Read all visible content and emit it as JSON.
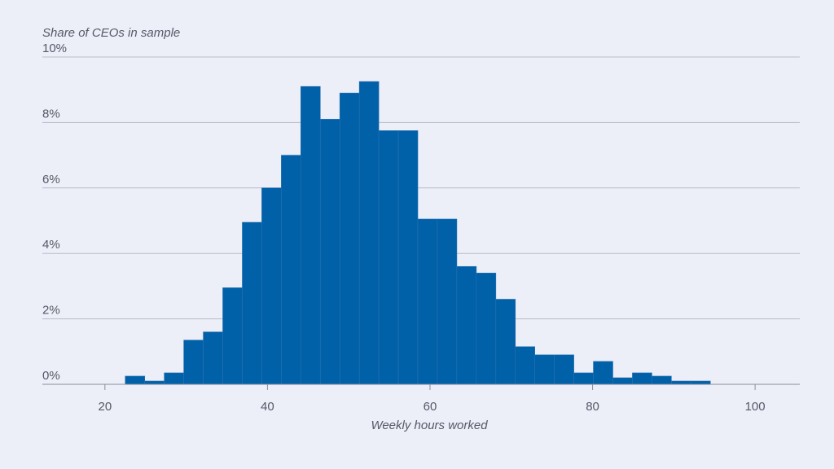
{
  "chart_data": {
    "type": "histogram",
    "ylabel": "Share of CEOs in sample",
    "xlabel": "Weekly hours worked",
    "color": "#0060a8",
    "bins": [
      22.5,
      24.9,
      27.3,
      29.7,
      32.1,
      34.5,
      36.9,
      39.3,
      41.7,
      44.1,
      46.5,
      48.9,
      51.3,
      53.7,
      56.1,
      58.5,
      60.9,
      63.3,
      65.7,
      68.1,
      70.5,
      72.9,
      75.3,
      77.7,
      80.1,
      82.5,
      84.9,
      87.3,
      89.7,
      92.1,
      94.5
    ],
    "values": [
      0.25,
      0.1,
      0.35,
      1.35,
      1.6,
      2.95,
      4.95,
      6.0,
      7.0,
      9.1,
      8.1,
      8.9,
      9.25,
      7.75,
      7.75,
      5.05,
      5.05,
      3.6,
      3.4,
      2.6,
      1.15,
      0.9,
      0.9,
      0.35,
      0.7,
      0.2,
      0.35,
      0.25,
      0.1,
      0.1
    ],
    "xlim": [
      12.3,
      105.5
    ],
    "xticks": [
      20,
      40,
      60,
      80,
      100
    ],
    "ylim": [
      0,
      10
    ],
    "yticks": [
      {
        "value": 0,
        "label": "0%"
      },
      {
        "value": 2,
        "label": "2%"
      },
      {
        "value": 4,
        "label": "4%"
      },
      {
        "value": 6,
        "label": "6%"
      },
      {
        "value": 8,
        "label": "8%"
      },
      {
        "value": 10,
        "label": "10%"
      }
    ],
    "grid": true
  }
}
